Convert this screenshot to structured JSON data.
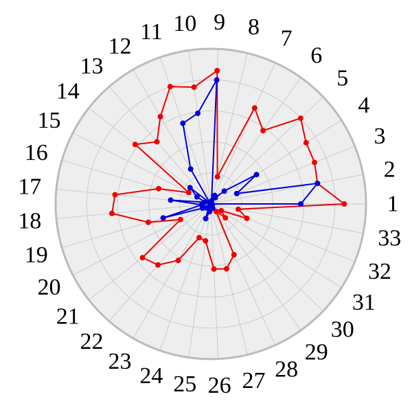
{
  "chart_data": {
    "type": "radar",
    "categories": [
      "1",
      "2",
      "3",
      "4",
      "5",
      "6",
      "7",
      "8",
      "9",
      "10",
      "11",
      "12",
      "13",
      "14",
      "15",
      "16",
      "17",
      "18",
      "19",
      "20",
      "21",
      "22",
      "23",
      "24",
      "25",
      "26",
      "27",
      "28",
      "29",
      "30",
      "31",
      "32",
      "33"
    ],
    "rlim": [
      0,
      1
    ],
    "grid": true,
    "colors": {
      "background": "#eeeeee",
      "outer_ring": "#bbbbbb",
      "grid": "#c8c8c8"
    },
    "series": [
      {
        "color": "#ee0000",
        "values": [
          0.86,
          0.7,
          0.72,
          0.73,
          0.8,
          0.58,
          0.68,
          0.18,
          0.86,
          0.76,
          0.8,
          0.65,
          0.53,
          0.62,
          0.16,
          0.35,
          0.62,
          0.64,
          0.42,
          0.22,
          0.56,
          0.52,
          0.42,
          0.23,
          0.24,
          0.42,
          0.43,
          0.36,
          0.06,
          0.13,
          0.08,
          0.25,
          0.18
        ]
      },
      {
        "color": "#0000dd",
        "values": [
          0.58,
          0.7,
          0.18,
          0.35,
          0.12,
          0.05,
          0.06,
          0.02,
          0.8,
          0.59,
          0.55,
          0.26,
          0.01,
          0.17,
          0.1,
          0.04,
          0.26,
          0.06,
          0.32,
          0.06,
          0.04,
          0.03,
          0.03,
          0.1,
          0.05,
          0.01,
          0.02,
          0.03,
          0.01,
          0.01,
          0.01,
          0.01,
          0.0
        ]
      }
    ]
  }
}
